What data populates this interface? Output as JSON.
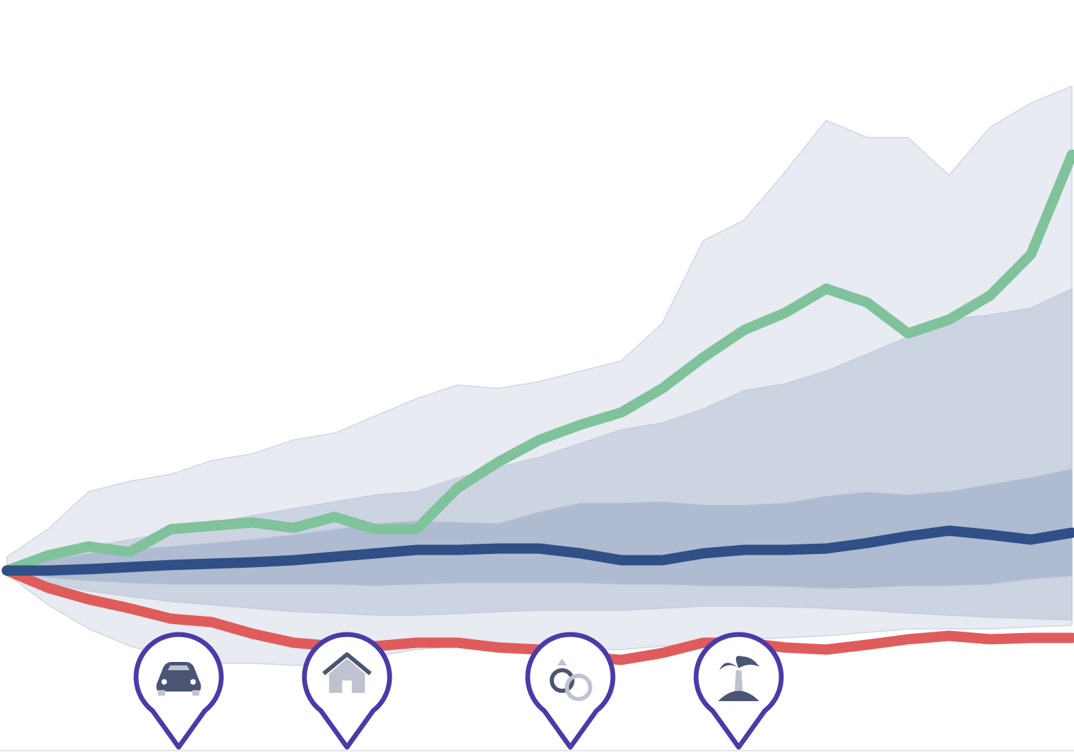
{
  "chart_data": {
    "type": "fan",
    "x": [
      0,
      1,
      2,
      3,
      4,
      5,
      6,
      7,
      8,
      9,
      10,
      11,
      12,
      13,
      14,
      15,
      16,
      17,
      18,
      19,
      20,
      21,
      22,
      23,
      24,
      25,
      26
    ],
    "xlim": [
      0,
      26
    ],
    "ylim": [
      -26.4,
      83
    ],
    "bands": [
      {
        "color": "#e8ebf2",
        "upper": [
          2,
          6,
          11.5,
          13,
          14,
          16,
          17,
          19,
          20,
          22.5,
          25,
          27,
          26.5,
          27.5,
          29,
          30.5,
          36,
          48,
          51,
          58,
          65.5,
          63,
          63,
          57.5,
          64.5,
          68,
          70.5
        ],
        "lower": [
          -0.5,
          -5,
          -8.5,
          -11,
          -12.5,
          -13.5,
          -13.5,
          -13.8,
          -13.5,
          -12.5,
          -11.5,
          -11,
          -11,
          -11.5,
          -11.5,
          -11.5,
          -11,
          -10.5,
          -10,
          -9.8,
          -9.5,
          -9,
          -8.5,
          -8.5,
          -8.5,
          -8.2,
          -8
        ]
      },
      {
        "color": "#cdd4e1",
        "upper": [
          0.2,
          1.8,
          3.5,
          4.5,
          5.5,
          7,
          8,
          9,
          10,
          11,
          11.5,
          13.5,
          15,
          16.5,
          18.5,
          20.5,
          21.5,
          23.5,
          26.2,
          27.2,
          29,
          31.5,
          34,
          36.5,
          37.2,
          38.2,
          41
        ],
        "lower": [
          -0.2,
          -1.8,
          -3,
          -3.8,
          -4.5,
          -5,
          -5.5,
          -6,
          -6.2,
          -6.5,
          -6.5,
          -6.3,
          -6,
          -5.8,
          -5.8,
          -5.8,
          -5.5,
          -5.2,
          -5.2,
          -5.3,
          -5.5,
          -5.8,
          -6.2,
          -6.5,
          -6.8,
          -7,
          -7.2
        ]
      },
      {
        "color": "#aebbd1",
        "upper": [
          0,
          1.5,
          2.5,
          3,
          3.5,
          4,
          4.5,
          5.2,
          6,
          6.8,
          7.2,
          7,
          6.8,
          8.5,
          9.8,
          9.8,
          10,
          9.5,
          9.5,
          9.8,
          10.8,
          11.4,
          11,
          11.5,
          12.5,
          13.5,
          14.8
        ],
        "lower": [
          0,
          -1,
          -1.5,
          -1.8,
          -2,
          -2,
          -2,
          -2,
          -2,
          -2.2,
          -2,
          -1.8,
          -1.8,
          -1.8,
          -1.8,
          -2,
          -2,
          -2.2,
          -2.2,
          -2.3,
          -2.6,
          -2.5,
          -2.2,
          -2.2,
          -2,
          -1.2,
          -0.8
        ]
      }
    ],
    "series": [
      {
        "color": "#7fc29b",
        "values": [
          0,
          2.2,
          3.5,
          2.7,
          6,
          6.5,
          7,
          6.2,
          7.8,
          6,
          6,
          12,
          15.8,
          19,
          21.2,
          23,
          26.5,
          31,
          35,
          37.5,
          41,
          39,
          34.5,
          36.5,
          40,
          46,
          60.5
        ]
      },
      {
        "color": "#e05c5c",
        "values": [
          0,
          -2.5,
          -4.2,
          -5.5,
          -7,
          -7.5,
          -9.2,
          -10.5,
          -11,
          -11,
          -10.5,
          -10.5,
          -11.2,
          -11.5,
          -12.5,
          -13,
          -12,
          -10.5,
          -10.5,
          -11.2,
          -11.5,
          -10.8,
          -10,
          -9.5,
          -10,
          -9.8,
          -9.8
        ]
      },
      {
        "color": "#2f4f86",
        "values": [
          0,
          0,
          0.2,
          0.5,
          0.8,
          1,
          1.2,
          1.5,
          2,
          2.5,
          3,
          3,
          3.2,
          3.2,
          2.5,
          1.5,
          1.5,
          2.5,
          3,
          3,
          3.2,
          4,
          5,
          5.8,
          5.2,
          4.5,
          5.5
        ]
      }
    ]
  }
}
